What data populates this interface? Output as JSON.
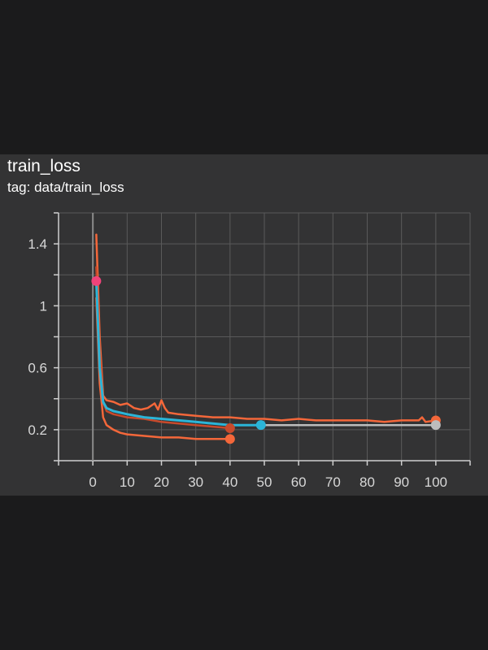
{
  "card": {
    "title": "train_loss",
    "tag": "tag: data/train_loss"
  },
  "colors": {
    "page_background": "#1b1b1c",
    "card_background": "#333334",
    "grid": "#5a5a5a",
    "axis": "#d0d0d0",
    "text": "#d8d8d8"
  },
  "chart_data": {
    "type": "line",
    "title": "",
    "xlabel": "",
    "ylabel": "",
    "xlim": [
      -10,
      110
    ],
    "ylim": [
      0,
      1.6
    ],
    "x_ticks": [
      0,
      10,
      20,
      30,
      40,
      50,
      60,
      70,
      80,
      90,
      100
    ],
    "y_ticks": [
      0.2,
      0.6,
      1,
      1.4
    ],
    "y_tick_labels": [
      "0.2",
      "0.6",
      "1",
      "1.4"
    ],
    "grid": true,
    "legend": "none",
    "series": [
      {
        "color": "#f4673a",
        "x": [
          1,
          2,
          3,
          4,
          6,
          8,
          10,
          12,
          14,
          16,
          18,
          19,
          20,
          21,
          22,
          25,
          30,
          35,
          40,
          45,
          50,
          55,
          60,
          65,
          70,
          75,
          80,
          85,
          90,
          95,
          96,
          97,
          100
        ],
        "y": [
          1.46,
          0.8,
          0.42,
          0.39,
          0.38,
          0.36,
          0.37,
          0.34,
          0.33,
          0.34,
          0.37,
          0.33,
          0.39,
          0.34,
          0.31,
          0.3,
          0.29,
          0.28,
          0.28,
          0.27,
          0.27,
          0.26,
          0.27,
          0.26,
          0.26,
          0.26,
          0.26,
          0.25,
          0.26,
          0.26,
          0.28,
          0.25,
          0.26
        ],
        "end_marker": true
      },
      {
        "color": "#f4673a",
        "x": [
          1,
          2,
          3,
          4,
          6,
          8,
          10,
          15,
          20,
          25,
          30,
          35,
          40
        ],
        "y": [
          1.05,
          0.5,
          0.28,
          0.23,
          0.2,
          0.18,
          0.17,
          0.16,
          0.15,
          0.15,
          0.14,
          0.14,
          0.14
        ],
        "end_marker": true
      },
      {
        "color": "#c84a2c",
        "x": [
          1,
          2,
          3,
          4,
          6,
          8,
          10,
          15,
          20,
          25,
          30,
          35,
          40
        ],
        "y": [
          1.25,
          0.7,
          0.38,
          0.32,
          0.3,
          0.29,
          0.28,
          0.27,
          0.25,
          0.24,
          0.23,
          0.22,
          0.21
        ],
        "end_marker": true
      },
      {
        "color": "#bdbdbd",
        "x": [
          49,
          60,
          70,
          80,
          90,
          100
        ],
        "y": [
          0.23,
          0.23,
          0.23,
          0.23,
          0.23,
          0.23
        ],
        "end_marker": true
      },
      {
        "color": "#2bb5d8",
        "x": [
          1,
          2,
          3,
          4,
          6,
          8,
          10,
          15,
          20,
          25,
          30,
          35,
          40,
          45,
          49
        ],
        "y": [
          1.16,
          0.6,
          0.38,
          0.34,
          0.32,
          0.31,
          0.3,
          0.28,
          0.27,
          0.26,
          0.25,
          0.24,
          0.23,
          0.23,
          0.23
        ],
        "end_marker": true
      }
    ],
    "highlight_points": [
      {
        "x": 1,
        "y": 1.16,
        "color": "#f0437a"
      }
    ]
  }
}
